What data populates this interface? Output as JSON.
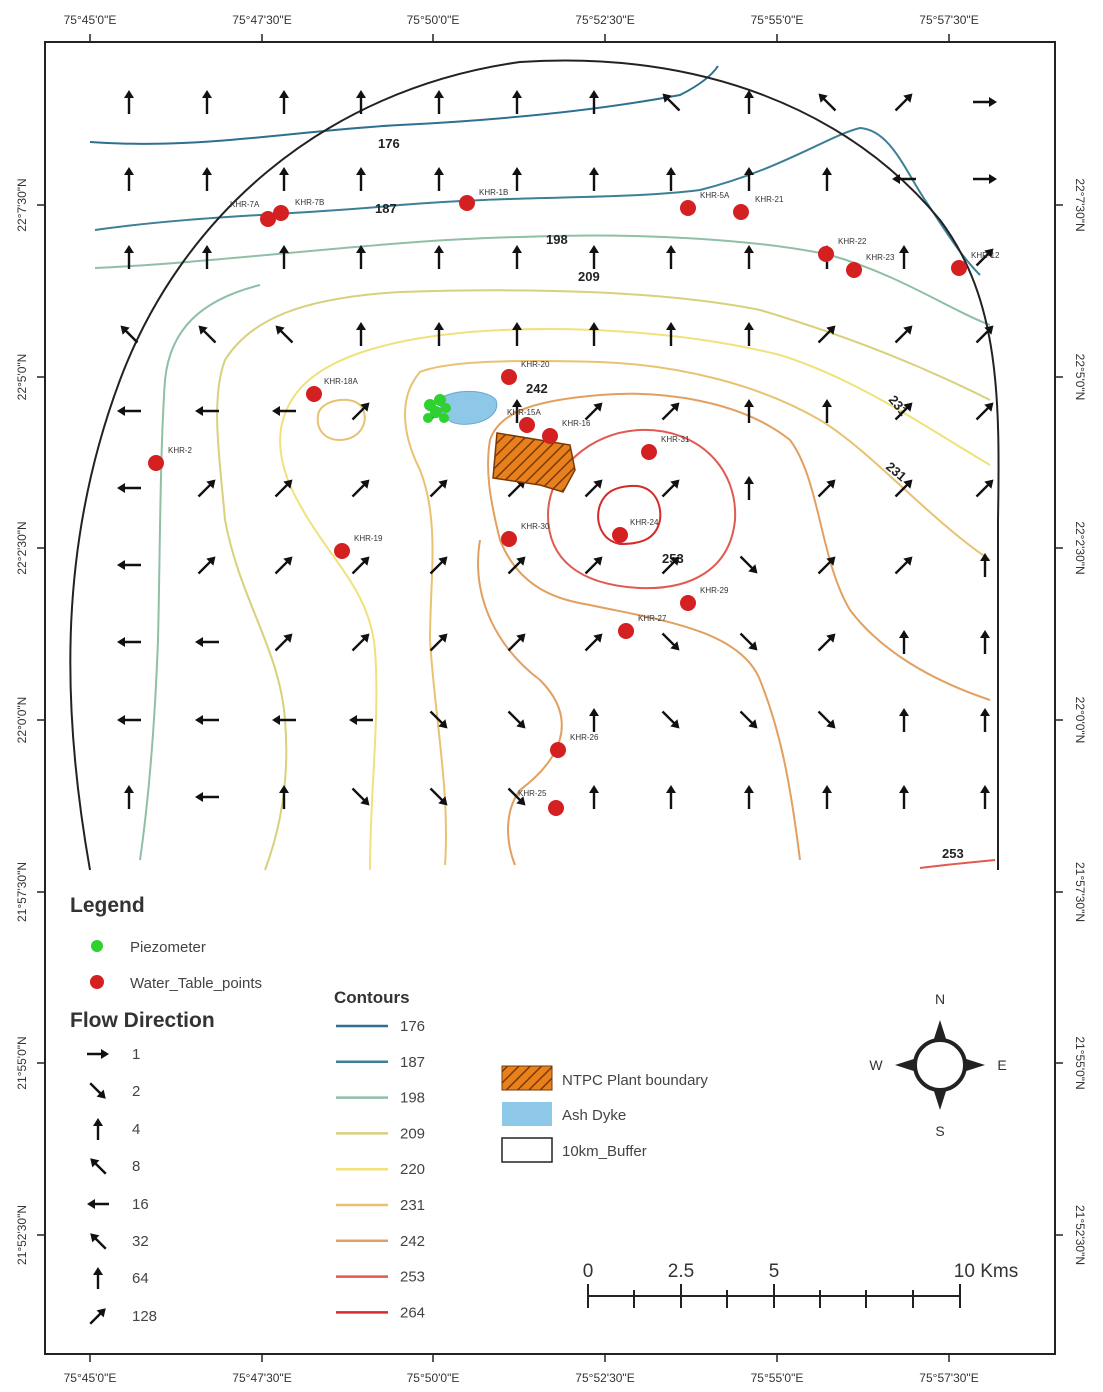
{
  "map": {
    "top_ticks": [
      "75°45'0\"E",
      "75°47'30\"E",
      "75°50'0\"E",
      "75°52'30\"E",
      "75°55'0\"E",
      "75°57'30\"E"
    ],
    "bottom_ticks": [
      "75°45'0\"E",
      "75°47'30\"E",
      "75°50'0\"E",
      "75°52'30\"E",
      "75°55'0\"E",
      "75°57'30\"E"
    ],
    "left_ticks": [
      "22°7'30\"N",
      "22°5'0\"N",
      "22°2'30\"N",
      "22°0'0\"N",
      "21°57'30\"N",
      "21°55'0\"N",
      "21°52'30\"N"
    ],
    "right_ticks": [
      "22°7'30\"N",
      "22°5'0\"N",
      "22°2'30\"N",
      "22°0'0\"N",
      "21°57'30\"N",
      "21°55'0\"N",
      "21°52'30\"N"
    ],
    "contour_labels": [
      {
        "text": "176",
        "color": "#2f6f8f"
      },
      {
        "text": "187",
        "color": "#3d7f95"
      },
      {
        "text": "198",
        "color": "#6aa7a0"
      },
      {
        "text": "209",
        "color": "#c8c27a"
      },
      {
        "text": "242",
        "color": "#d99a5a"
      },
      {
        "text": "231",
        "color": "#e0c068"
      },
      {
        "text": "231",
        "color": "#e0c068"
      },
      {
        "text": "253",
        "color": "#d9534a"
      },
      {
        "text": "253",
        "color": "#d9534a"
      }
    ],
    "points": [
      {
        "label": "KHR-7A"
      },
      {
        "label": "KHR-7B"
      },
      {
        "label": "KHR-1B"
      },
      {
        "label": "KHR-5A"
      },
      {
        "label": "KHR-21"
      },
      {
        "label": "KHR-22"
      },
      {
        "label": "KHR-23"
      },
      {
        "label": "KHR-12"
      },
      {
        "label": "KHR-18A"
      },
      {
        "label": "KHR-20"
      },
      {
        "label": "KHR-15A"
      },
      {
        "label": "KHR-16"
      },
      {
        "label": "KHR-2"
      },
      {
        "label": "KHR-31"
      },
      {
        "label": "KHR-24"
      },
      {
        "label": "KHR-30"
      },
      {
        "label": "KHR-19"
      },
      {
        "label": "KHR-29"
      },
      {
        "label": "KHR-27"
      },
      {
        "label": "KHR-26"
      },
      {
        "label": "KHR-25"
      }
    ]
  },
  "legend": {
    "title": "Legend",
    "piezometer": "Piezometer",
    "water_table": "Water_Table_points",
    "flow_title": "Flow Direction",
    "flow_items": [
      "1",
      "2",
      "4",
      "8",
      "16",
      "32",
      "64",
      "128"
    ],
    "contours_title": "Contours",
    "contour_items": [
      {
        "value": "176",
        "color": "#2f6f8f"
      },
      {
        "value": "187",
        "color": "#3d7f95"
      },
      {
        "value": "198",
        "color": "#8fbfa5"
      },
      {
        "value": "209",
        "color": "#d8d07a"
      },
      {
        "value": "220",
        "color": "#f0e27a"
      },
      {
        "value": "231",
        "color": "#e8c270"
      },
      {
        "value": "242",
        "color": "#e2a060"
      },
      {
        "value": "253",
        "color": "#e05a50"
      },
      {
        "value": "264",
        "color": "#d42a2a"
      }
    ],
    "areas": {
      "ntpc": "NTPC Plant boundary",
      "ash": "Ash Dyke",
      "buffer": "10km_Buffer"
    }
  },
  "scalebar": {
    "labels": [
      "0",
      "2.5",
      "5",
      "10 Kms"
    ]
  },
  "north_arrow": {
    "n": "N",
    "s": "S",
    "e": "E",
    "w": "W"
  },
  "colors": {
    "point": "#d42020",
    "piezo": "#2fd12f",
    "ash": "#8ec8e8",
    "ntpc": "#e8801c"
  }
}
